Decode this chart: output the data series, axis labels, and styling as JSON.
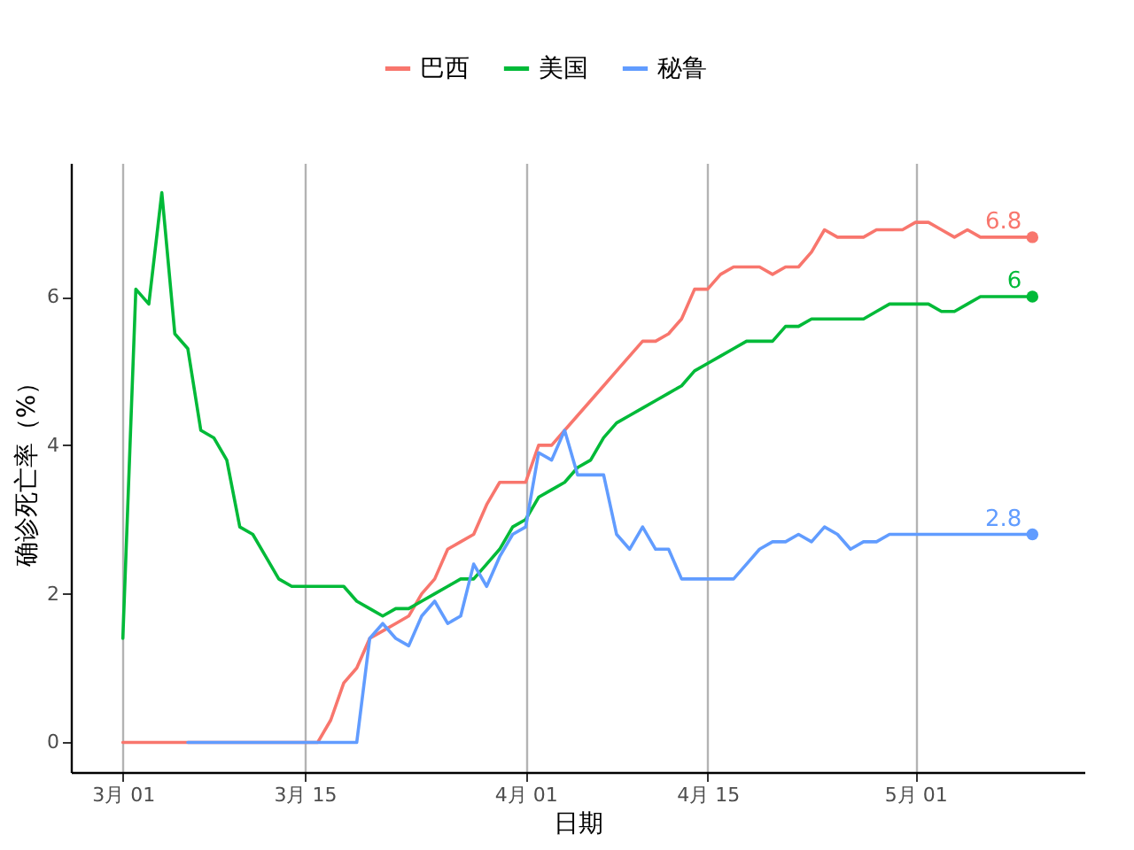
{
  "chart_data": {
    "type": "line",
    "xlabel": "日期",
    "ylabel": "确诊死亡率（%）",
    "x": [
      "--03-01",
      "--03-02",
      "--03-03",
      "--03-04",
      "--03-05",
      "--03-06",
      "--03-07",
      "--03-08",
      "--03-09",
      "--03-10",
      "--03-11",
      "--03-12",
      "--03-13",
      "--03-14",
      "--03-15",
      "--03-16",
      "--03-17",
      "--03-18",
      "--03-19",
      "--03-20",
      "--03-21",
      "--03-22",
      "--03-23",
      "--03-24",
      "--03-25",
      "--03-26",
      "--03-27",
      "--03-28",
      "--03-29",
      "--03-30",
      "--03-31",
      "--04-01",
      "--04-02",
      "--04-03",
      "--04-04",
      "--04-05",
      "--04-06",
      "--04-07",
      "--04-08",
      "--04-09",
      "--04-10",
      "--04-11",
      "--04-12",
      "--04-13",
      "--04-14",
      "--04-15",
      "--04-16",
      "--04-17",
      "--04-18",
      "--04-19",
      "--04-20",
      "--04-21",
      "--04-22",
      "--04-23",
      "--04-24",
      "--04-25",
      "--04-26",
      "--04-27",
      "--04-28",
      "--04-29",
      "--04-30",
      "--05-01",
      "--05-02",
      "--05-03",
      "--05-04",
      "--05-05",
      "--05-06",
      "--05-07",
      "--05-08",
      "--05-09",
      "--05-10"
    ],
    "series": [
      {
        "name": "巴西",
        "color": "#f8766d",
        "values": [
          0,
          0,
          0,
          0,
          0,
          0,
          0,
          0,
          0,
          0,
          0,
          0,
          0,
          0,
          0,
          0,
          0.3,
          0.8,
          1.0,
          1.4,
          1.5,
          1.6,
          1.7,
          2.0,
          2.2,
          2.6,
          2.7,
          2.8,
          3.2,
          3.5,
          3.5,
          3.5,
          4.0,
          4.0,
          4.2,
          4.4,
          4.6,
          4.8,
          5.0,
          5.2,
          5.4,
          5.4,
          5.5,
          5.7,
          6.1,
          6.1,
          6.3,
          6.4,
          6.4,
          6.4,
          6.3,
          6.4,
          6.4,
          6.6,
          6.9,
          6.8,
          6.8,
          6.8,
          6.9,
          6.9,
          6.9,
          7.0,
          7.0,
          6.9,
          6.8,
          6.9,
          6.8,
          6.8,
          6.8,
          6.8,
          6.8
        ],
        "value_labels": [
          null,
          null,
          null,
          null,
          null,
          null,
          null,
          null,
          null,
          null,
          null,
          null,
          null,
          null,
          null,
          null,
          null,
          null,
          null,
          null,
          null,
          null,
          null,
          null,
          null,
          null,
          null,
          null,
          null,
          null,
          null,
          null,
          null,
          null,
          null,
          null,
          null,
          null,
          null,
          null,
          null,
          null,
          null,
          null,
          null,
          null,
          null,
          null,
          null,
          null,
          null,
          null,
          null,
          null,
          null,
          null,
          null,
          null,
          null,
          null,
          null,
          null,
          null,
          null,
          null,
          null,
          null,
          null,
          null,
          null,
          "6.8"
        ]
      },
      {
        "name": "美国",
        "color": "#00ba38",
        "values": [
          1.4,
          6.1,
          5.9,
          7.4,
          5.5,
          5.3,
          4.2,
          4.1,
          3.8,
          2.9,
          2.8,
          2.5,
          2.2,
          2.1,
          2.1,
          2.1,
          2.1,
          2.1,
          1.9,
          1.8,
          1.7,
          1.8,
          1.8,
          1.9,
          2.0,
          2.1,
          2.2,
          2.2,
          2.4,
          2.6,
          2.9,
          3.0,
          3.3,
          3.4,
          3.5,
          3.7,
          3.8,
          4.1,
          4.3,
          4.4,
          4.5,
          4.6,
          4.7,
          4.8,
          5.0,
          5.1,
          5.2,
          5.3,
          5.4,
          5.4,
          5.4,
          5.6,
          5.6,
          5.7,
          5.7,
          5.7,
          5.7,
          5.7,
          5.8,
          5.9,
          5.9,
          5.9,
          5.9,
          5.8,
          5.8,
          5.9,
          6.0,
          6.0,
          6.0,
          6.0,
          6.0
        ],
        "value_labels": [
          null,
          null,
          null,
          null,
          null,
          null,
          null,
          null,
          null,
          null,
          null,
          null,
          null,
          null,
          null,
          null,
          null,
          null,
          null,
          null,
          null,
          null,
          null,
          null,
          null,
          null,
          null,
          null,
          null,
          null,
          null,
          null,
          null,
          null,
          null,
          null,
          null,
          null,
          null,
          null,
          null,
          null,
          null,
          null,
          null,
          null,
          null,
          null,
          null,
          null,
          null,
          null,
          null,
          null,
          null,
          null,
          null,
          null,
          null,
          null,
          null,
          null,
          null,
          null,
          null,
          null,
          null,
          null,
          null,
          null,
          "6"
        ]
      },
      {
        "name": "秘鲁",
        "color": "#619cff",
        "x": [
          "--03-06",
          "--03-07",
          "--03-08",
          "--03-09",
          "--03-10",
          "--03-11",
          "--03-12",
          "--03-13",
          "--03-14",
          "--03-15",
          "--03-16",
          "--03-17",
          "--03-18",
          "--03-19",
          "--03-20",
          "--03-21",
          "--03-22",
          "--03-23",
          "--03-24",
          "--03-25",
          "--03-26",
          "--03-27",
          "--03-28",
          "--03-29",
          "--03-30",
          "--03-31",
          "--04-01",
          "--04-02",
          "--04-03",
          "--04-04",
          "--04-05",
          "--04-06",
          "--04-07",
          "--04-08",
          "--04-09",
          "--04-10",
          "--04-11",
          "--04-12",
          "--04-13",
          "--04-14",
          "--04-15",
          "--04-16",
          "--04-17",
          "--04-18",
          "--04-19",
          "--04-20",
          "--04-21",
          "--04-22",
          "--04-23",
          "--04-24",
          "--04-25",
          "--04-26",
          "--04-27",
          "--04-28",
          "--04-29",
          "--04-30",
          "--05-01",
          "--05-02",
          "--05-03",
          "--05-04",
          "--05-05",
          "--05-06",
          "--05-07",
          "--05-08",
          "--05-09",
          "--05-10"
        ],
        "values": [
          0,
          0,
          0,
          0,
          0,
          0,
          0,
          0,
          0,
          0,
          0,
          0,
          0,
          0,
          1.4,
          1.6,
          1.4,
          1.3,
          1.7,
          1.9,
          1.6,
          1.7,
          2.4,
          2.1,
          2.5,
          2.8,
          2.9,
          3.9,
          3.8,
          4.2,
          3.6,
          3.6,
          3.6,
          2.8,
          2.6,
          2.9,
          2.6,
          2.6,
          2.2,
          2.2,
          2.2,
          2.2,
          2.2,
          2.4,
          2.6,
          2.7,
          2.7,
          2.8,
          2.7,
          2.9,
          2.8,
          2.6,
          2.7,
          2.7,
          2.8,
          2.8,
          2.8,
          2.8,
          2.8,
          2.8,
          2.8,
          2.8,
          2.8,
          2.8,
          2.8,
          2.8
        ],
        "value_labels": [
          null,
          null,
          null,
          null,
          null,
          null,
          null,
          null,
          null,
          null,
          null,
          null,
          null,
          null,
          null,
          null,
          null,
          null,
          null,
          null,
          null,
          null,
          null,
          null,
          null,
          null,
          null,
          null,
          null,
          null,
          null,
          null,
          null,
          null,
          null,
          null,
          null,
          null,
          null,
          null,
          null,
          null,
          null,
          null,
          null,
          null,
          null,
          null,
          null,
          null,
          null,
          null,
          null,
          null,
          null,
          null,
          null,
          null,
          null,
          null,
          null,
          null,
          null,
          null,
          null,
          "2.8"
        ]
      }
    ],
    "xlim": [
      "--02-25",
      "--05-14"
    ],
    "xticks": [
      {
        "value": "--03-01",
        "label": "3月 01"
      },
      {
        "value": "--03-15",
        "label": "3月 15"
      },
      {
        "value": "--04-01",
        "label": "4月 01"
      },
      {
        "value": "--04-15",
        "label": "4月 15"
      },
      {
        "value": "--05-01",
        "label": "5月 01"
      }
    ],
    "ylim": [
      -0.4,
      7.8
    ],
    "yticks": [
      0,
      2,
      4,
      6
    ],
    "grid": "x",
    "legend": "top"
  }
}
